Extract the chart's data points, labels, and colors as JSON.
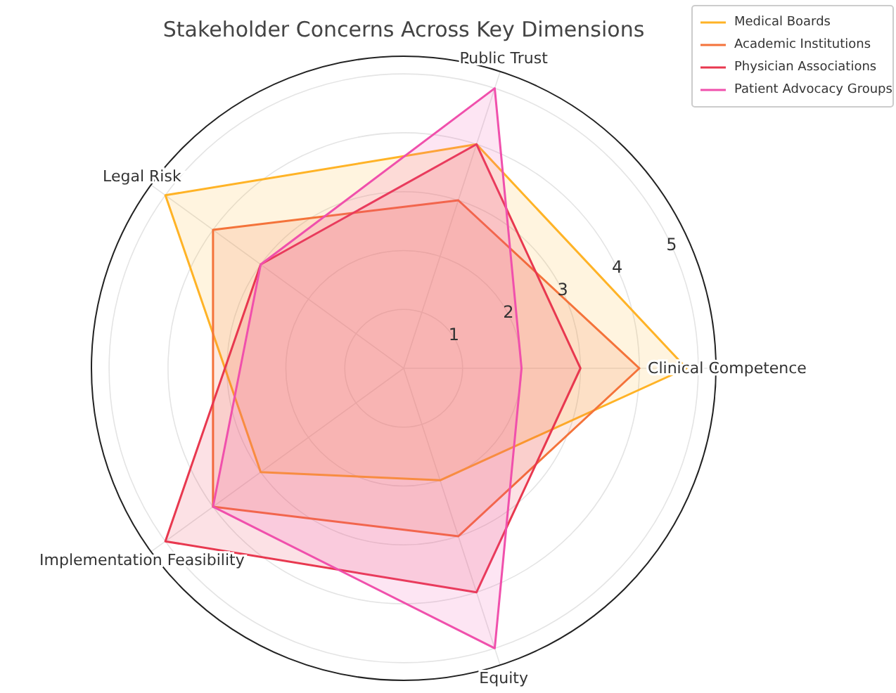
{
  "chart_data": {
    "type": "radar",
    "title": "Stakeholder Concerns Across Key Dimensions",
    "categories": [
      "Public Trust",
      "Clinical Competence",
      "Equity",
      "Implementation Feasibility",
      "Legal Risk"
    ],
    "series": [
      {
        "name": "Medical Boards",
        "color": "#ffb326",
        "values": [
          4,
          4.8,
          2,
          3,
          5
        ]
      },
      {
        "name": "Academic Institutions",
        "color": "#f4733a",
        "values": [
          3,
          4,
          3,
          4,
          4
        ]
      },
      {
        "name": "Physician Associations",
        "color": "#e8384f",
        "values": [
          4,
          3,
          4,
          5,
          3
        ]
      },
      {
        "name": "Patient Advocacy Groups",
        "color": "#f050ac",
        "values": [
          5,
          2,
          5,
          4,
          3
        ]
      }
    ],
    "ylim": [
      0,
      5.3
    ],
    "yticks": [
      1,
      2,
      3,
      4,
      5
    ],
    "grid": true,
    "legend": "top right"
  }
}
